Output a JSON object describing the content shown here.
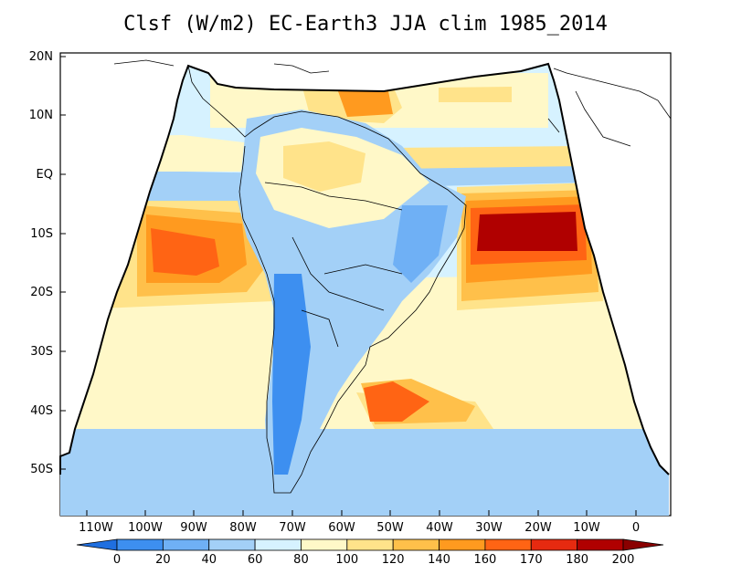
{
  "title": "Clsf (W/m2) EC-Earth3 JJA clim 1985_2014",
  "axes": {
    "lat_ticks": [
      "20N",
      "10N",
      "EQ",
      "10S",
      "20S",
      "30S",
      "40S",
      "50S"
    ],
    "lon_ticks": [
      "110W",
      "100W",
      "90W",
      "80W",
      "70W",
      "60W",
      "50W",
      "40W",
      "30W",
      "20W",
      "10W",
      "0"
    ]
  },
  "colorbar": {
    "labels": [
      "0",
      "20",
      "40",
      "60",
      "80",
      "100",
      "120",
      "140",
      "160",
      "170",
      "180",
      "200"
    ],
    "colors": [
      "#1f6fe0",
      "#3d8ff0",
      "#6fb0f5",
      "#a3d0f7",
      "#d6f2ff",
      "#fff8c8",
      "#ffe38a",
      "#ffc04a",
      "#ff9a1f",
      "#ff6414",
      "#e62a10",
      "#b00000",
      "#8a0000"
    ]
  },
  "map": {
    "ocean_colors": {
      "light_blue": "#d6f2ff",
      "mid_blue": "#a3d0f7",
      "yellow": "#fff8c8",
      "gold": "#ffe38a",
      "orange": "#ffc04a",
      "dark_orange": "#ff9a1f",
      "red": "#e62a10",
      "dark_red": "#b00000"
    }
  }
}
